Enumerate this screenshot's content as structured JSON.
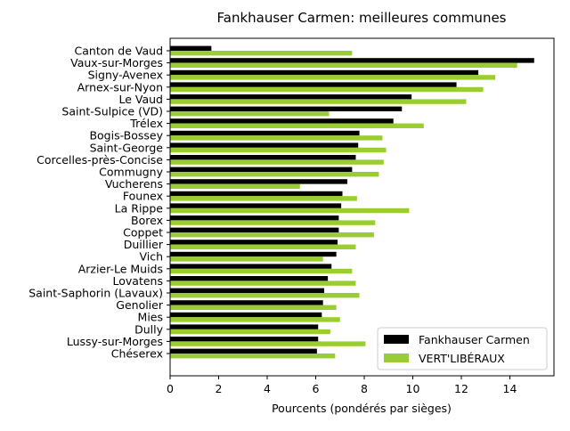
{
  "chart_data": {
    "type": "bar",
    "orientation": "horizontal",
    "title": "Fankhauser Carmen: meilleures communes",
    "xlabel": "Pourcents (pondérés par sièges)",
    "ylabel": "",
    "xlim": [
      0,
      15.8
    ],
    "xticks": [
      0,
      2,
      4,
      6,
      8,
      10,
      12,
      14
    ],
    "grid": false,
    "legend_position": "lower-right",
    "categories": [
      "Canton de Vaud",
      "Vaux-sur-Morges",
      "Signy-Avenex",
      "Arnex-sur-Nyon",
      "Le Vaud",
      "Saint-Sulpice (VD)",
      "Trélex",
      "Bogis-Bossey",
      "Saint-George",
      "Corcelles-près-Concise",
      "Commugny",
      "Vucherens",
      "Founex",
      "La Rippe",
      "Borex",
      "Coppet",
      "Duillier",
      "Vich",
      "Arzier-Le Muids",
      "Lovatens",
      "Saint-Saphorin (Lavaux)",
      "Genolier",
      "Mies",
      "Dully",
      "Lussy-sur-Morges",
      "Chéserex"
    ],
    "series": [
      {
        "name": "Fankhauser Carmen",
        "color": "#000000",
        "values": [
          1.7,
          15.0,
          12.7,
          11.8,
          9.95,
          9.55,
          9.2,
          7.8,
          7.75,
          7.65,
          7.5,
          7.3,
          7.1,
          7.05,
          6.95,
          6.95,
          6.9,
          6.85,
          6.65,
          6.5,
          6.35,
          6.3,
          6.25,
          6.1,
          6.1,
          6.05
        ]
      },
      {
        "name": "VERT'LIBÉRAUX",
        "color": "#9acd32",
        "values": [
          7.5,
          14.3,
          13.4,
          12.9,
          12.2,
          6.55,
          10.45,
          8.75,
          8.9,
          8.8,
          8.6,
          5.35,
          7.7,
          9.85,
          8.45,
          8.4,
          7.65,
          6.3,
          7.5,
          7.65,
          7.8,
          6.85,
          7.0,
          6.6,
          8.05,
          6.8
        ]
      }
    ]
  }
}
